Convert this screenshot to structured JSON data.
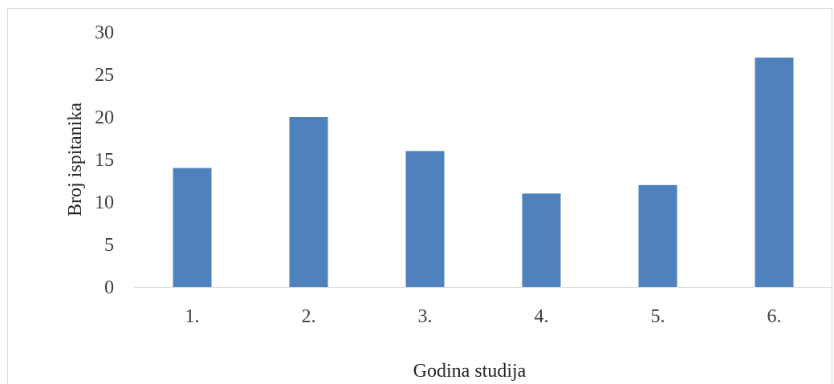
{
  "chart_data": {
    "type": "bar",
    "categories": [
      "1.",
      "2.",
      "3.",
      "4.",
      "5.",
      "6."
    ],
    "values": [
      14,
      20,
      16,
      11,
      12,
      27
    ],
    "xlabel": "Godina studija",
    "ylabel": "Broj ispitanika",
    "ylim": [
      0,
      30
    ],
    "yticks": [
      "0",
      "5",
      "10",
      "15",
      "20",
      "25",
      "30"
    ],
    "grid": false,
    "legend": "none",
    "bar_color": "#4F81BD",
    "axis_color": "#d9d9d9"
  }
}
